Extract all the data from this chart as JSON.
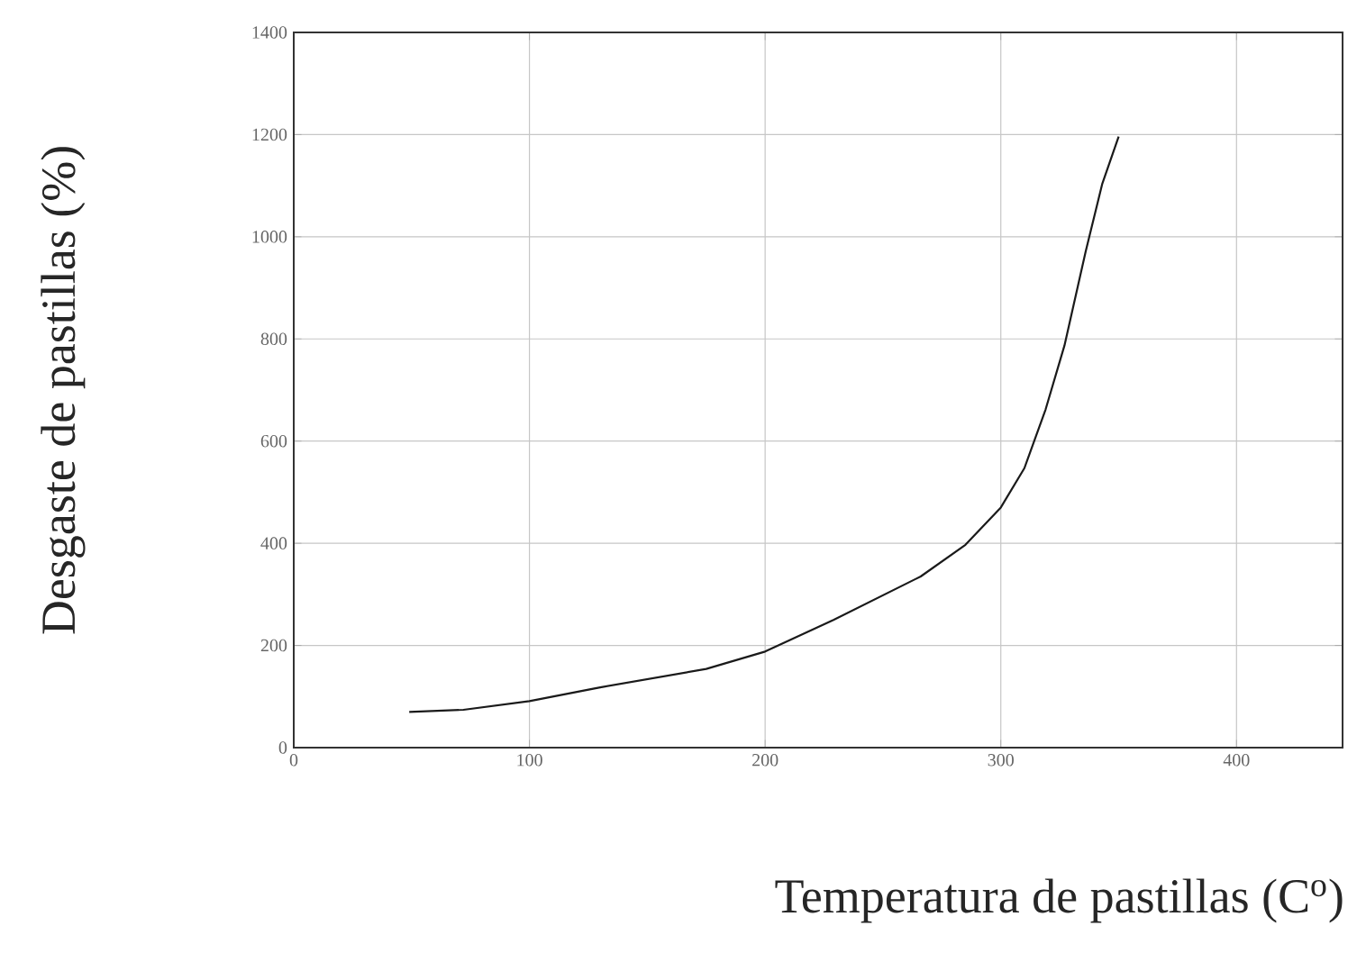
{
  "chart_data": {
    "type": "line",
    "xlabel": "Temperatura de pastillas (C$^{o}$)",
    "ylabel": "Desgaste de pastillas (%)",
    "x": [
      49,
      72,
      100,
      130,
      175,
      200,
      229,
      266,
      285,
      300,
      310,
      319,
      327,
      336,
      343,
      350
    ],
    "series": [
      {
        "color": "#1a1a1a",
        "values": [
          70,
          74,
          91,
          118,
          154,
          188,
          250,
          335,
          397,
          470,
          547,
          662,
          787,
          971,
          1103,
          1196
        ]
      }
    ],
    "xlim": [
      0,
      445
    ],
    "ylim": [
      0,
      1400
    ],
    "xticks": [
      0,
      100,
      200,
      300,
      400
    ],
    "yticks": [
      0,
      200,
      400,
      600,
      800,
      1000,
      1200,
      1400
    ],
    "grid": true,
    "marker": "none",
    "line_style": "solid"
  }
}
